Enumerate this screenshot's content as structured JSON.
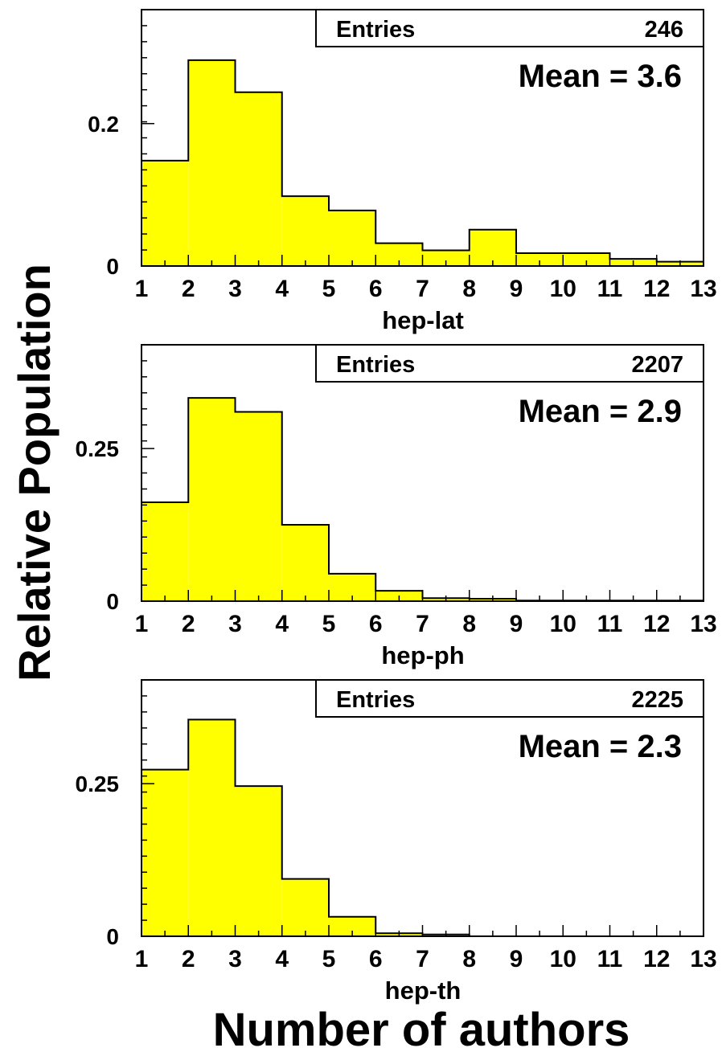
{
  "ylabel": "Relative Population",
  "xlabel": "Number of authors",
  "chart_data": [
    {
      "type": "bar",
      "title": "hep-lat",
      "xlabel": "hep-lat",
      "bin_edges": [
        1,
        2,
        3,
        4,
        5,
        6,
        7,
        8,
        9,
        10,
        11,
        12,
        13
      ],
      "values": [
        0.148,
        0.289,
        0.244,
        0.098,
        0.078,
        0.032,
        0.022,
        0.051,
        0.018,
        0.018,
        0.01,
        0.006
      ],
      "xlim": [
        1,
        13
      ],
      "ylim": [
        0,
        0.36
      ],
      "y_ticks": [
        0,
        0.2
      ],
      "y_tick_labels": [
        "0",
        "0.2"
      ],
      "x_tick_labels": [
        "1",
        "2",
        "3",
        "4",
        "5",
        "6",
        "7",
        "8",
        "9",
        "10",
        "11",
        "12",
        "13"
      ],
      "stats": {
        "entries_label": "Entries",
        "entries": "246",
        "mean_text": "Mean = 3.6"
      },
      "fill_color": "#ffff00"
    },
    {
      "type": "bar",
      "title": "hep-ph",
      "xlabel": "hep-ph",
      "bin_edges": [
        1,
        2,
        3,
        4,
        5,
        6,
        7,
        8,
        9,
        10,
        11,
        12,
        13
      ],
      "values": [
        0.162,
        0.333,
        0.31,
        0.125,
        0.045,
        0.017,
        0.005,
        0.004,
        0.001,
        0.001,
        0.001,
        0.001
      ],
      "xlim": [
        1,
        13
      ],
      "ylim": [
        0,
        0.42
      ],
      "y_ticks": [
        0,
        0.25
      ],
      "y_tick_labels": [
        "0",
        "0.25"
      ],
      "x_tick_labels": [
        "1",
        "2",
        "3",
        "4",
        "5",
        "6",
        "7",
        "8",
        "9",
        "10",
        "11",
        "12",
        "13"
      ],
      "stats": {
        "entries_label": "Entries",
        "entries": "2207",
        "mean_text": "Mean = 2.9"
      },
      "fill_color": "#ffff00"
    },
    {
      "type": "bar",
      "title": "hep-th",
      "xlabel": "hep-th",
      "bin_edges": [
        1,
        2,
        3,
        4,
        5,
        6,
        7,
        8,
        9,
        10,
        11,
        12,
        13
      ],
      "values": [
        0.273,
        0.355,
        0.246,
        0.094,
        0.032,
        0.005,
        0.003,
        0,
        0,
        0,
        0,
        0
      ],
      "xlim": [
        1,
        13
      ],
      "ylim": [
        0,
        0.42
      ],
      "y_ticks": [
        0,
        0.25
      ],
      "y_tick_labels": [
        "0",
        "0.25"
      ],
      "x_tick_labels": [
        "1",
        "2",
        "3",
        "4",
        "5",
        "6",
        "7",
        "8",
        "9",
        "10",
        "11",
        "12",
        "13"
      ],
      "stats": {
        "entries_label": "Entries",
        "entries": "2225",
        "mean_text": "Mean = 2.3"
      },
      "fill_color": "#ffff00"
    }
  ]
}
